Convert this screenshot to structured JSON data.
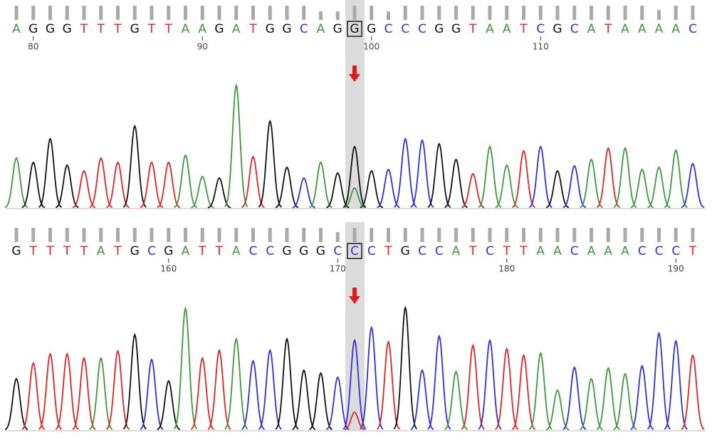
{
  "base_colors": {
    "A": "#3c9a3c",
    "C": "#2f2fe0",
    "G": "#111111",
    "T": "#e02424"
  },
  "panels": [
    {
      "bases": [
        "A",
        "G",
        "G",
        "G",
        "T",
        "T",
        "T",
        "G",
        "T",
        "T",
        "A",
        "A",
        "G",
        "A",
        "T",
        "G",
        "G",
        "C",
        "A",
        "G",
        "G",
        "G",
        "C",
        "C",
        "C",
        "G",
        "G",
        "T",
        "A",
        "A",
        "T",
        "C",
        "G",
        "C",
        "A",
        "T",
        "A",
        "A",
        "A",
        "A",
        "C"
      ],
      "xlim": [
        79,
        119
      ],
      "xticks": [
        80,
        90,
        100,
        110
      ],
      "highlight": 99,
      "quality": [
        20,
        20,
        20,
        20,
        20,
        20,
        20,
        20,
        20,
        20,
        20,
        20,
        20,
        20,
        20,
        20,
        20,
        20,
        12,
        12,
        20,
        20,
        12,
        20,
        20,
        20,
        20,
        20,
        20,
        20,
        20,
        20,
        20,
        20,
        20,
        20,
        20,
        20,
        14,
        20,
        20
      ],
      "peaks": [
        70,
        64,
        97,
        60,
        52,
        70,
        64,
        115,
        64,
        64,
        74,
        44,
        42,
        172,
        72,
        122,
        57,
        42,
        64,
        49,
        86,
        52,
        54,
        97,
        95,
        90,
        68,
        48,
        86,
        60,
        80,
        86,
        52,
        59,
        68,
        84,
        84,
        54,
        57,
        81,
        62
      ],
      "secondary": {
        "base": "A",
        "height": 28
      }
    },
    {
      "bases": [
        "G",
        "T",
        "T",
        "T",
        "T",
        "A",
        "T",
        "G",
        "C",
        "G",
        "A",
        "T",
        "T",
        "A",
        "C",
        "C",
        "G",
        "G",
        "G",
        "C",
        "C",
        "C",
        "T",
        "G",
        "C",
        "C",
        "A",
        "T",
        "C",
        "T",
        "T",
        "A",
        "A",
        "C",
        "A",
        "A",
        "A",
        "C",
        "C",
        "C",
        "T"
      ],
      "xlim": [
        151,
        191
      ],
      "xticks": [
        160,
        170,
        180,
        190
      ],
      "highlight": 171,
      "quality": [
        20,
        20,
        20,
        20,
        20,
        20,
        20,
        20,
        20,
        20,
        20,
        20,
        20,
        20,
        20,
        20,
        20,
        20,
        20,
        14,
        20,
        20,
        20,
        20,
        20,
        20,
        20,
        20,
        20,
        20,
        20,
        20,
        20,
        20,
        20,
        20,
        20,
        20,
        20,
        20,
        20
      ],
      "peaks": [
        72,
        94,
        107,
        107,
        101,
        101,
        111,
        134,
        99,
        69,
        171,
        101,
        112,
        128,
        97,
        112,
        128,
        84,
        80,
        74,
        126,
        144,
        124,
        172,
        84,
        132,
        82,
        119,
        126,
        114,
        105,
        108,
        56,
        88,
        72,
        87,
        79,
        90,
        136,
        125,
        105
      ],
      "secondary": {
        "base": "T",
        "height": 25
      }
    }
  ]
}
